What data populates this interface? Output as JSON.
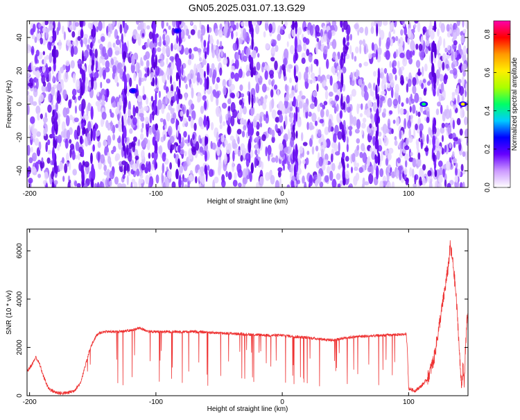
{
  "title": "GN05.2025.031.07.13.G29",
  "colors": {
    "snr_line": "#ee3333",
    "axis": "#000000"
  },
  "chart_data": [
    {
      "type": "heatmap",
      "xlabel": "Height of straight line (km)",
      "ylabel": "Frequency (Hz)",
      "xlim": [
        -202,
        147
      ],
      "ylim": [
        -50,
        50
      ],
      "xticks": [
        -200,
        -100,
        0,
        100
      ],
      "yticks": [
        -40,
        -20,
        0,
        20,
        40
      ],
      "colorbar": {
        "label": "Normalized spectral amplitude",
        "range": [
          0,
          0.87
        ],
        "ticks": [
          0.0,
          0.2,
          0.4,
          0.6,
          0.8
        ],
        "colormap": [
          "#ffffff",
          "#cc99ff",
          "#6600ff",
          "#0000ff",
          "#00ccff",
          "#00ff66",
          "#aaff00",
          "#ffee00",
          "#ff9900",
          "#ff0000",
          "#ff00aa"
        ]
      },
      "hotspots": [
        {
          "x": 112,
          "y": 0,
          "value": 0.4
        },
        {
          "x": 143,
          "y": 0,
          "value": 0.65
        },
        {
          "x": -118,
          "y": 8,
          "value": 0.3
        },
        {
          "x": -83,
          "y": 44,
          "value": 0.3
        }
      ],
      "grid": false
    },
    {
      "type": "line",
      "xlabel": "Height of straight line (km)",
      "ylabel": "SNR (10 * v/v)",
      "xlim": [
        -202,
        147
      ],
      "ylim": [
        0,
        6900
      ],
      "xticks": [
        -200,
        -100,
        0,
        100
      ],
      "yticks": [
        0,
        2000,
        4000,
        6000
      ],
      "series": [
        {
          "x": [
            -202,
            -198,
            -195,
            -192,
            -189,
            -185,
            -180,
            -175,
            -170,
            -165,
            -160,
            -156,
            -153,
            -150,
            -147,
            -145,
            -140,
            -130,
            -120,
            -113,
            -105,
            -90,
            -70,
            -50,
            -30,
            -10,
            0,
            20,
            40,
            50,
            60,
            80,
            98,
            99,
            100,
            105,
            110,
            115,
            120,
            123,
            126,
            129,
            131,
            133,
            135,
            137,
            139,
            141,
            142,
            143,
            144,
            145,
            146,
            147
          ],
          "y": [
            1000,
            1300,
            1600,
            1300,
            800,
            300,
            150,
            100,
            120,
            200,
            500,
            1200,
            1800,
            2200,
            2500,
            2600,
            2650,
            2650,
            2700,
            2800,
            2650,
            2650,
            2650,
            2600,
            2550,
            2500,
            2500,
            2400,
            2300,
            2400,
            2450,
            2500,
            2550,
            2000,
            300,
            200,
            400,
            700,
            1500,
            2500,
            3500,
            4500,
            5200,
            6200,
            5500,
            4500,
            3000,
            1000,
            500,
            1200,
            400,
            2000,
            3000,
            3500
          ]
        }
      ],
      "grid": false
    }
  ]
}
